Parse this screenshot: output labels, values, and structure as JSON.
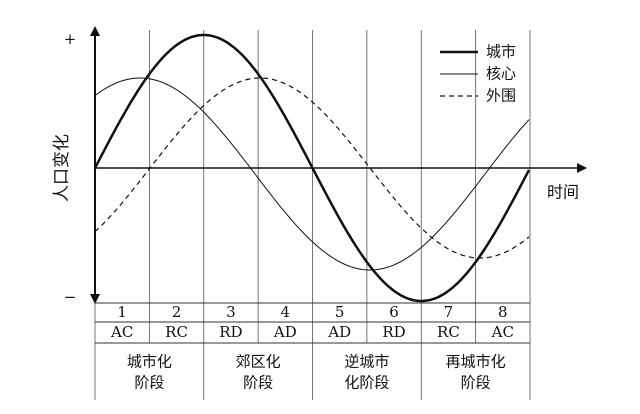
{
  "axes": {
    "y_label": "人口变化",
    "y_plus": "+",
    "y_minus": "−",
    "x_label": "时间"
  },
  "legend": [
    "城市",
    "核心",
    "外围"
  ],
  "table": {
    "numbers": [
      "1",
      "2",
      "3",
      "4",
      "5",
      "6",
      "7",
      "8"
    ],
    "codes": [
      "AC",
      "RC",
      "RD",
      "AD",
      "AD",
      "RD",
      "RC",
      "AC"
    ],
    "stages": [
      [
        "城市化",
        "阶段"
      ],
      [
        "郊区化",
        "阶段"
      ],
      [
        "逆城市",
        "化阶段"
      ],
      [
        "再城市化",
        "阶段"
      ]
    ]
  }
}
